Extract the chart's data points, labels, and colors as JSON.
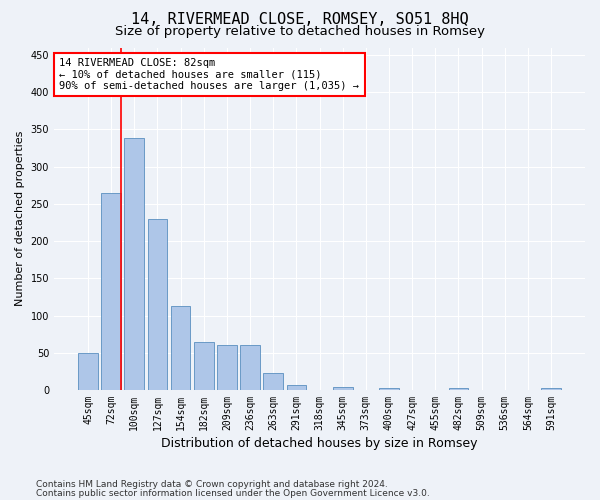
{
  "title": "14, RIVERMEAD CLOSE, ROMSEY, SO51 8HQ",
  "subtitle": "Size of property relative to detached houses in Romsey",
  "xlabel": "Distribution of detached houses by size in Romsey",
  "ylabel": "Number of detached properties",
  "categories": [
    "45sqm",
    "72sqm",
    "100sqm",
    "127sqm",
    "154sqm",
    "182sqm",
    "209sqm",
    "236sqm",
    "263sqm",
    "291sqm",
    "318sqm",
    "345sqm",
    "373sqm",
    "400sqm",
    "427sqm",
    "455sqm",
    "482sqm",
    "509sqm",
    "536sqm",
    "564sqm",
    "591sqm"
  ],
  "values": [
    50,
    265,
    338,
    230,
    113,
    65,
    60,
    60,
    23,
    7,
    0,
    4,
    0,
    3,
    0,
    0,
    3,
    0,
    0,
    0,
    3
  ],
  "bar_color": "#aec6e8",
  "bar_edge_color": "#5a8fc0",
  "vline_color": "red",
  "vline_x": 1.42,
  "annotation_text": "14 RIVERMEAD CLOSE: 82sqm\n← 10% of detached houses are smaller (115)\n90% of semi-detached houses are larger (1,035) →",
  "annotation_box_color": "white",
  "annotation_box_edge_color": "red",
  "ylim": [
    0,
    460
  ],
  "yticks": [
    0,
    50,
    100,
    150,
    200,
    250,
    300,
    350,
    400,
    450
  ],
  "footer_line1": "Contains HM Land Registry data © Crown copyright and database right 2024.",
  "footer_line2": "Contains public sector information licensed under the Open Government Licence v3.0.",
  "background_color": "#eef2f8",
  "plot_bg_color": "#eef2f8",
  "grid_color": "white",
  "title_fontsize": 11,
  "subtitle_fontsize": 9.5,
  "xlabel_fontsize": 9,
  "ylabel_fontsize": 8,
  "tick_fontsize": 7,
  "footer_fontsize": 6.5
}
